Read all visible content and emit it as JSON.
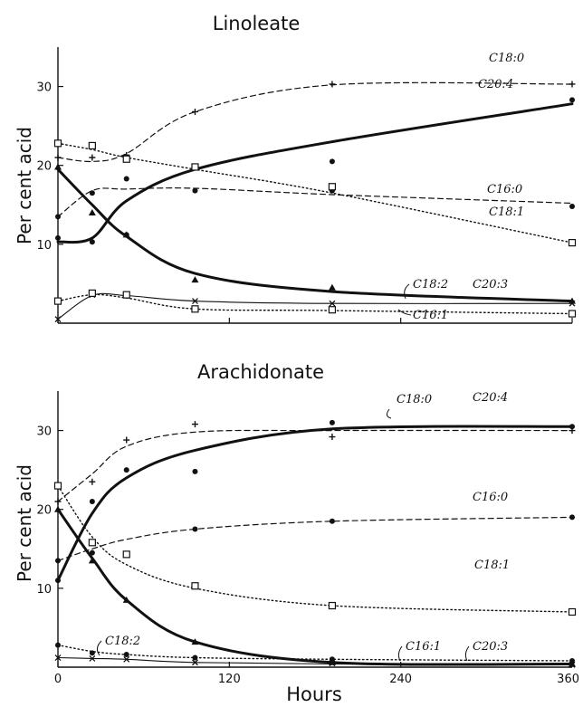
{
  "figure": {
    "xlabel": "Hours",
    "x_ticks": [
      0,
      120,
      240,
      360
    ]
  },
  "chart_data": [
    {
      "type": "line",
      "title": "Linoleate",
      "xlabel": "Hours",
      "ylabel": "Per cent acid",
      "xlim": [
        0,
        360
      ],
      "ylim": [
        0,
        35
      ],
      "y_ticks": [
        10,
        20,
        30
      ],
      "grid": false,
      "series": [
        {
          "name": "C18:0",
          "style": "dashed",
          "marker": "plus",
          "x": [
            0,
            24,
            48,
            96,
            192,
            360
          ],
          "y": [
            21,
            20.5,
            21.5,
            26.8,
            30.2,
            30.3
          ],
          "points": [
            [
              0,
              21
            ],
            [
              24,
              21
            ],
            [
              48,
              21.3
            ],
            [
              96,
              26.8
            ],
            [
              192,
              30.3
            ],
            [
              360,
              30.3
            ]
          ]
        },
        {
          "name": "C20:4",
          "style": "solid-bold",
          "marker": "dot",
          "x": [
            0,
            24,
            48,
            96,
            192,
            360
          ],
          "y": [
            10.3,
            10.8,
            15.5,
            19.5,
            23,
            27.8
          ],
          "points": [
            [
              0,
              10.8
            ],
            [
              24,
              10.3
            ],
            [
              48,
              11.2
            ],
            [
              96,
              19.8
            ],
            [
              192,
              20.5
            ],
            [
              360,
              28.3
            ]
          ]
        },
        {
          "name": "C16:0",
          "style": "dashed",
          "marker": "dot",
          "x": [
            0,
            24,
            48,
            96,
            192,
            360
          ],
          "y": [
            13.5,
            16.8,
            17,
            17.1,
            16.3,
            15.2
          ],
          "points": [
            [
              0,
              13.5
            ],
            [
              24,
              16.5
            ],
            [
              48,
              18.3
            ],
            [
              96,
              16.8
            ],
            [
              192,
              16.8
            ],
            [
              360,
              14.8
            ]
          ]
        },
        {
          "name": "C18:1",
          "style": "dotted",
          "marker": "square",
          "x": [
            0,
            24,
            48,
            96,
            192,
            360
          ],
          "y": [
            22.8,
            22,
            21,
            19.5,
            16.5,
            10.2
          ],
          "points": [
            [
              0,
              22.8
            ],
            [
              24,
              22.5
            ],
            [
              48,
              20.8
            ],
            [
              96,
              19.8
            ],
            [
              192,
              17.3
            ],
            [
              360,
              10.2
            ]
          ]
        },
        {
          "name": "C18:2",
          "style": "solid-bold",
          "marker": "triangle",
          "x": [
            0,
            24,
            48,
            96,
            192,
            360
          ],
          "y": [
            19.5,
            15,
            11,
            6.3,
            4,
            2.8
          ],
          "points": [
            [
              0,
              19.8
            ],
            [
              24,
              14
            ],
            [
              48,
              11.2
            ],
            [
              96,
              5.5
            ],
            [
              192,
              4.5
            ],
            [
              360,
              2.8
            ]
          ]
        },
        {
          "name": "C20:3",
          "style": "solid-thin",
          "marker": "cross",
          "x": [
            0,
            24,
            48,
            96,
            192,
            360
          ],
          "y": [
            0.5,
            3.5,
            3.5,
            2.8,
            2.5,
            2.5
          ],
          "points": [
            [
              0,
              0.5
            ],
            [
              24,
              3.6
            ],
            [
              48,
              3.5
            ],
            [
              96,
              2.8
            ],
            [
              192,
              2.5
            ],
            [
              360,
              2.5
            ]
          ]
        },
        {
          "name": "C16:1",
          "style": "dotted",
          "marker": "square",
          "x": [
            0,
            24,
            48,
            96,
            192,
            360
          ],
          "y": [
            2.8,
            3.6,
            3.2,
            1.8,
            1.6,
            1.2
          ],
          "points": [
            [
              0,
              2.8
            ],
            [
              24,
              3.8
            ],
            [
              48,
              3.6
            ],
            [
              96,
              1.8
            ],
            [
              192,
              1.7
            ],
            [
              360,
              1.2
            ]
          ]
        }
      ]
    },
    {
      "type": "line",
      "title": "Arachidonate",
      "xlabel": "Hours",
      "ylabel": "Per cent acid",
      "xlim": [
        0,
        360
      ],
      "ylim": [
        0,
        35
      ],
      "y_ticks": [
        10,
        20,
        30
      ],
      "grid": false,
      "series": [
        {
          "name": "C18:0",
          "style": "dashed",
          "marker": "plus",
          "x": [
            0,
            24,
            48,
            96,
            192,
            360
          ],
          "y": [
            21,
            24.5,
            28,
            29.8,
            30,
            30
          ],
          "points": [
            [
              0,
              21
            ],
            [
              24,
              23.5
            ],
            [
              48,
              28.8
            ],
            [
              96,
              30.8
            ],
            [
              192,
              29.2
            ],
            [
              360,
              30
            ]
          ]
        },
        {
          "name": "C20:4",
          "style": "solid-bold",
          "marker": "dot",
          "x": [
            0,
            24,
            48,
            96,
            192,
            360
          ],
          "y": [
            11,
            19.5,
            24,
            27.5,
            30.2,
            30.5
          ],
          "points": [
            [
              0,
              11
            ],
            [
              24,
              21
            ],
            [
              48,
              25
            ],
            [
              96,
              24.8
            ],
            [
              192,
              31
            ],
            [
              360,
              30.5
            ]
          ]
        },
        {
          "name": "C16:0",
          "style": "dashed",
          "marker": "dot",
          "x": [
            0,
            24,
            48,
            96,
            192,
            360
          ],
          "y": [
            13.5,
            15,
            16.2,
            17.5,
            18.5,
            19
          ],
          "points": [
            [
              0,
              13.5
            ],
            [
              24,
              14.5
            ],
            [
              48,
              14.3
            ],
            [
              96,
              17.5
            ],
            [
              192,
              18.5
            ],
            [
              360,
              19
            ]
          ]
        },
        {
          "name": "C18:1",
          "style": "dotted",
          "marker": "square",
          "x": [
            0,
            24,
            48,
            96,
            192,
            360
          ],
          "y": [
            23,
            16.5,
            13,
            10,
            7.8,
            7
          ],
          "points": [
            [
              0,
              23
            ],
            [
              24,
              15.8
            ],
            [
              48,
              14.3
            ],
            [
              96,
              10.3
            ],
            [
              192,
              7.8
            ],
            [
              360,
              7
            ]
          ]
        },
        {
          "name": "C18:2",
          "style": "solid-bold",
          "marker": "triangle",
          "x": [
            0,
            24,
            48,
            96,
            192,
            360
          ],
          "y": [
            20,
            13.8,
            8.5,
            3.2,
            0.6,
            0.4
          ],
          "points": [
            [
              0,
              20
            ],
            [
              24,
              13.5
            ],
            [
              48,
              8.5
            ],
            [
              96,
              3.2
            ],
            [
              192,
              0.6
            ],
            [
              360,
              0.4
            ]
          ]
        },
        {
          "name": "C16:1",
          "style": "dotted",
          "marker": "dot",
          "x": [
            0,
            24,
            48,
            96,
            192,
            360
          ],
          "y": [
            2.8,
            2,
            1.6,
            1.2,
            1,
            0.8
          ],
          "points": [
            [
              0,
              2.8
            ],
            [
              24,
              1.8
            ],
            [
              48,
              1.6
            ],
            [
              96,
              1.2
            ],
            [
              192,
              1
            ],
            [
              360,
              0.8
            ]
          ]
        },
        {
          "name": "C20:3",
          "style": "solid-thin",
          "marker": "cross",
          "x": [
            0,
            24,
            48,
            96,
            192,
            360
          ],
          "y": [
            1.2,
            1.1,
            1,
            0.6,
            0.4,
            0.3
          ],
          "points": [
            [
              0,
              1.2
            ],
            [
              24,
              1.1
            ],
            [
              48,
              1
            ],
            [
              96,
              0.6
            ],
            [
              192,
              0.5
            ],
            [
              360,
              0.3
            ]
          ]
        }
      ]
    }
  ]
}
